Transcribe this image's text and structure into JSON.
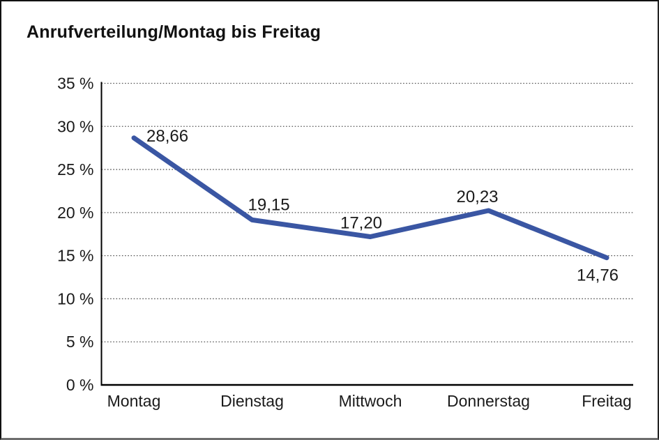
{
  "title": "Anrufverteilung/Montag bis Freitag",
  "chart_data": {
    "type": "line",
    "title": "Anrufverteilung/Montag bis Freitag",
    "categories": [
      "Montag",
      "Dienstag",
      "Mittwoch",
      "Donnerstag",
      "Freitag"
    ],
    "values": [
      28.66,
      19.15,
      17.2,
      20.23,
      14.76
    ],
    "value_labels": [
      "28,66",
      "19,15",
      "17,20",
      "20,23",
      "14,76"
    ],
    "xlabel": "",
    "ylabel": "",
    "ylim": [
      0,
      35
    ],
    "y_ticks": [
      0,
      5,
      10,
      15,
      20,
      25,
      30,
      35
    ],
    "y_tick_labels": [
      "0 %",
      "5 %",
      "10 %",
      "15 %",
      "20 %",
      "25 %",
      "30 %",
      "35 %"
    ],
    "grid": "horizontal-dotted",
    "legend": "none"
  },
  "colors": {
    "line": "#3A56A3",
    "axis": "#000000",
    "grid": "#555555",
    "text": "#1a1a1a",
    "background": "#ffffff",
    "border": "#111111"
  }
}
